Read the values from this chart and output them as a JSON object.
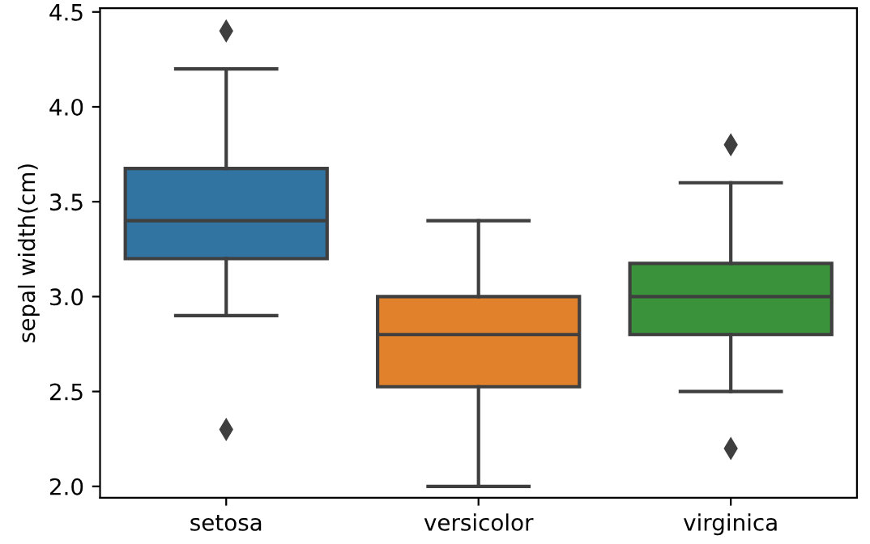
{
  "chart_data": {
    "type": "box",
    "ylabel": "sepal width(cm)",
    "categories": [
      "setosa",
      "versicolor",
      "virginica"
    ],
    "colors": [
      "#3274a1",
      "#e1812c",
      "#3a923a"
    ],
    "boxes": [
      {
        "low": 2.9,
        "q1": 3.2,
        "median": 3.4,
        "q3": 3.675,
        "high": 4.2,
        "outliers": [
          2.3,
          4.4
        ]
      },
      {
        "low": 2.0,
        "q1": 2.525,
        "median": 2.8,
        "q3": 3.0,
        "high": 3.4
      },
      {
        "low": 2.5,
        "q1": 2.8,
        "median": 3.0,
        "q3": 3.175,
        "high": 3.6,
        "outliers": [
          2.2,
          3.8
        ]
      }
    ],
    "ylim": [
      1.94,
      4.52
    ],
    "yticks": [
      {
        "value": 2,
        "label": "2.0"
      },
      2.5,
      {
        "value": 3,
        "label": "3.0"
      },
      3.5,
      {
        "value": 4,
        "label": "4.0"
      },
      4.5
    ],
    "grid": false,
    "marker": "diamond"
  }
}
